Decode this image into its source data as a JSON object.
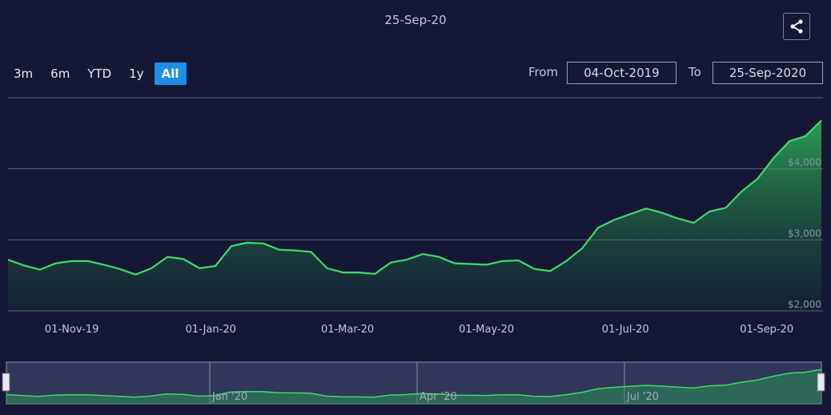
{
  "header": {
    "current_date": "25-Sep-20"
  },
  "icons": {
    "share": "share-icon"
  },
  "range_selector": {
    "buttons": [
      "3m",
      "6m",
      "YTD",
      "1y",
      "All"
    ],
    "active": "All"
  },
  "date_range": {
    "from_label": "From",
    "from_value": "04-Oct-2019",
    "to_label": "To",
    "to_value": "25-Sep-2020"
  },
  "colors": {
    "background": "#141834",
    "line": "#3ddc6a",
    "grid": "#5a5f7a",
    "active_button": "#1e8fe6"
  },
  "chart_data": {
    "type": "area",
    "title": "",
    "xlabel": "",
    "ylabel": "",
    "x_ticks": [
      "01-Nov-19",
      "01-Jan-20",
      "01-Mar-20",
      "01-May-20",
      "01-Jul-20",
      "01-Sep-20"
    ],
    "y_ticks": [
      "$2,000",
      "$3,000",
      "$4,000"
    ],
    "ylim": [
      2000,
      5000
    ],
    "grid": true,
    "series": [
      {
        "x": [
          "2019-10-04",
          "2019-10-11",
          "2019-10-18",
          "2019-10-25",
          "2019-11-01",
          "2019-11-08",
          "2019-11-15",
          "2019-11-22",
          "2019-11-29",
          "2019-12-06",
          "2019-12-13",
          "2019-12-20",
          "2019-12-27",
          "2020-01-03",
          "2020-01-10",
          "2020-01-17",
          "2020-01-24",
          "2020-01-31",
          "2020-02-07",
          "2020-02-14",
          "2020-02-21",
          "2020-02-28",
          "2020-03-06",
          "2020-03-13",
          "2020-03-20",
          "2020-03-27",
          "2020-04-03",
          "2020-04-10",
          "2020-04-17",
          "2020-04-24",
          "2020-05-01",
          "2020-05-08",
          "2020-05-15",
          "2020-05-22",
          "2020-05-29",
          "2020-06-05",
          "2020-06-12",
          "2020-06-19",
          "2020-06-26",
          "2020-07-03",
          "2020-07-10",
          "2020-07-17",
          "2020-07-24",
          "2020-07-31",
          "2020-08-07",
          "2020-08-14",
          "2020-08-21",
          "2020-08-28",
          "2020-09-04",
          "2020-09-11",
          "2020-09-18",
          "2020-09-25"
        ],
        "values": [
          2720,
          2640,
          2580,
          2670,
          2700,
          2700,
          2650,
          2590,
          2510,
          2600,
          2760,
          2730,
          2600,
          2630,
          2910,
          2960,
          2950,
          2860,
          2850,
          2830,
          2600,
          2540,
          2540,
          2520,
          2680,
          2720,
          2800,
          2760,
          2670,
          2660,
          2650,
          2700,
          2710,
          2590,
          2560,
          2700,
          2880,
          3170,
          3280,
          3360,
          3440,
          3380,
          3300,
          3240,
          3400,
          3450,
          3680,
          3860,
          4150,
          4390,
          4460,
          4680
        ]
      }
    ]
  }
}
